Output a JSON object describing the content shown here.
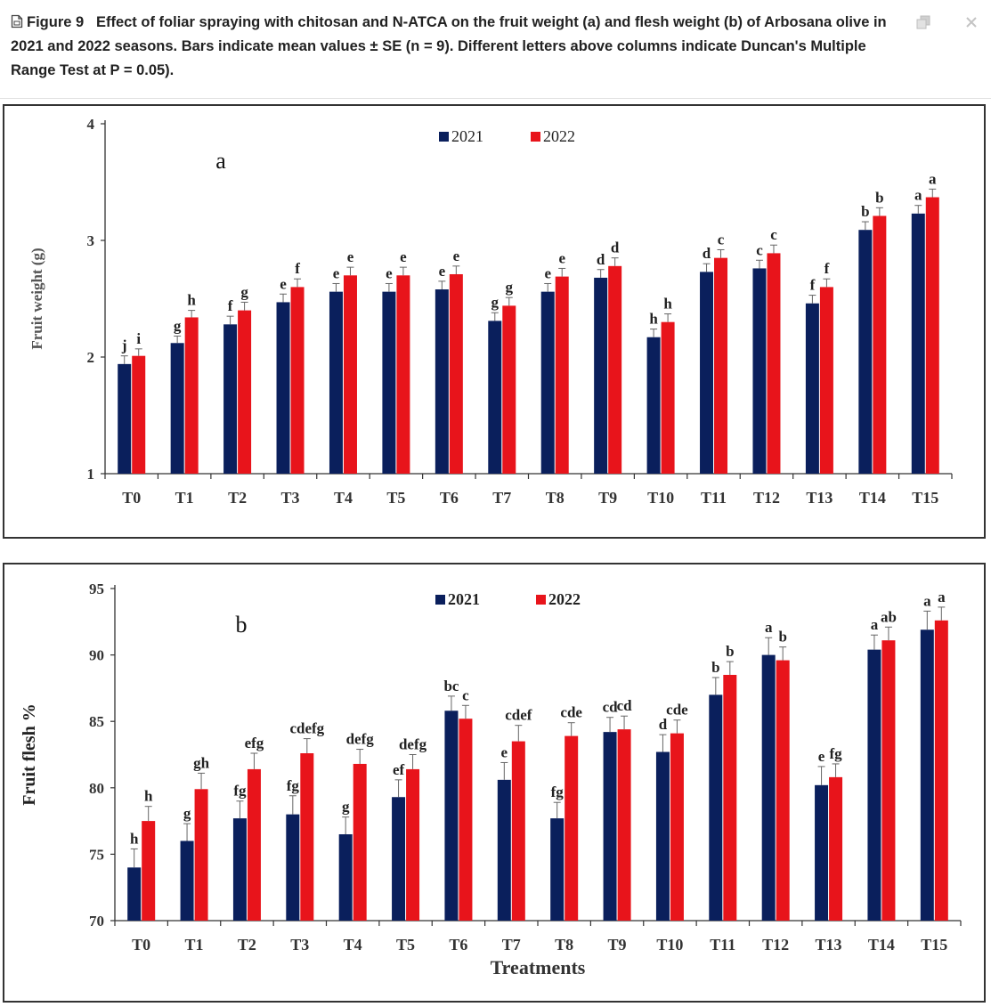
{
  "caption": {
    "label": "Figure 9",
    "text": "Effect of foliar spraying with chitosan and N-ATCA on the fruit weight (a) and flesh weight (b) of Arbosana olive in 2021 and 2022 seasons. Bars indicate mean values ± SE (n = 9). Different letters above columns indicate Duncan's Multiple Range Test at P = 0.05)."
  },
  "toolbar": {
    "expand_icon": "copy-expand-icon",
    "close_icon": "close-icon"
  },
  "colors": {
    "series_2021": "#0a1f5c",
    "series_2022": "#e8141b",
    "axis": "#333333",
    "text": "#222222"
  },
  "chart_data": [
    {
      "type": "bar",
      "panel_label": "a",
      "title": "",
      "xlabel": "",
      "ylabel": "Fruit weight (g)",
      "ylim": [
        1,
        4
      ],
      "yticks": [
        1,
        2,
        3,
        4
      ],
      "legend": "top-center",
      "categories": [
        "T0",
        "T1",
        "T2",
        "T3",
        "T4",
        "T5",
        "T6",
        "T7",
        "T8",
        "T9",
        "T10",
        "T11",
        "T12",
        "T13",
        "T14",
        "T15"
      ],
      "series": [
        {
          "name": "2021",
          "values": [
            1.94,
            2.12,
            2.28,
            2.47,
            2.56,
            2.56,
            2.58,
            2.31,
            2.56,
            2.68,
            2.17,
            2.73,
            2.76,
            2.46,
            3.09,
            3.23
          ],
          "errors": [
            0.07,
            0.06,
            0.07,
            0.07,
            0.07,
            0.07,
            0.07,
            0.07,
            0.07,
            0.07,
            0.07,
            0.07,
            0.07,
            0.07,
            0.07,
            0.07
          ],
          "letters": [
            "j",
            "g",
            "f",
            "e",
            "e",
            "e",
            "e",
            "g",
            "e",
            "d",
            "h",
            "d",
            "c",
            "f",
            "b",
            "a"
          ]
        },
        {
          "name": "2022",
          "values": [
            2.01,
            2.34,
            2.4,
            2.6,
            2.7,
            2.7,
            2.71,
            2.44,
            2.69,
            2.78,
            2.3,
            2.85,
            2.89,
            2.6,
            3.21,
            3.37
          ],
          "errors": [
            0.06,
            0.06,
            0.07,
            0.07,
            0.07,
            0.07,
            0.07,
            0.07,
            0.07,
            0.07,
            0.07,
            0.07,
            0.07,
            0.07,
            0.07,
            0.07
          ],
          "letters": [
            "i",
            "h",
            "g",
            "f",
            "e",
            "e",
            "e",
            "g",
            "e",
            "d",
            "h",
            "c",
            "c",
            "f",
            "b",
            "a"
          ]
        }
      ]
    },
    {
      "type": "bar",
      "panel_label": "b",
      "title": "",
      "xlabel": "Treatments",
      "ylabel": "Fruit flesh %",
      "ylim": [
        70,
        95
      ],
      "yticks": [
        70,
        75,
        80,
        85,
        90,
        95
      ],
      "legend": "top-center",
      "categories": [
        "T0",
        "T1",
        "T2",
        "T3",
        "T4",
        "T5",
        "T6",
        "T7",
        "T8",
        "T9",
        "T10",
        "T11",
        "T12",
        "T13",
        "T14",
        "T15"
      ],
      "series": [
        {
          "name": "2021",
          "values": [
            74.0,
            76.0,
            77.7,
            78.0,
            76.5,
            79.3,
            85.8,
            80.6,
            77.7,
            84.2,
            82.7,
            87.0,
            90.0,
            80.2,
            90.4,
            91.9
          ],
          "errors": [
            1.4,
            1.3,
            1.3,
            1.4,
            1.3,
            1.3,
            1.1,
            1.3,
            1.2,
            1.1,
            1.3,
            1.3,
            1.3,
            1.4,
            1.1,
            1.4
          ],
          "letters": [
            "h",
            "g",
            "fg",
            "fg",
            "g",
            "ef",
            "bc",
            "e",
            "fg",
            "cd",
            "d",
            "b",
            "a",
            "e",
            "a",
            "a"
          ]
        },
        {
          "name": "2022",
          "values": [
            77.5,
            79.9,
            81.4,
            82.6,
            81.8,
            81.4,
            85.2,
            83.5,
            83.9,
            84.4,
            84.1,
            88.5,
            89.6,
            80.8,
            91.1,
            92.6
          ],
          "errors": [
            1.1,
            1.2,
            1.2,
            1.1,
            1.1,
            1.1,
            1.0,
            1.2,
            1.0,
            1.0,
            1.0,
            1.0,
            1.0,
            1.0,
            1.0,
            1.0
          ],
          "letters": [
            "h",
            "gh",
            "efg",
            "cdefg",
            "defg",
            "defg",
            "c",
            "cdef",
            "cde",
            "cd",
            "cde",
            "b",
            "b",
            "fg",
            "ab",
            "a"
          ]
        }
      ]
    }
  ]
}
